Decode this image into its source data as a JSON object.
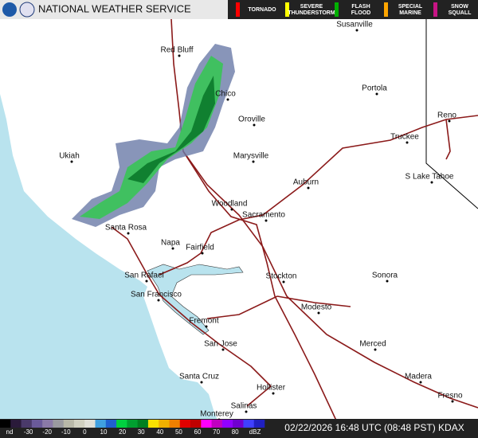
{
  "header": {
    "title": "NATIONAL WEATHER SERVICE",
    "warnings": [
      {
        "label": "TORNADO",
        "color": "#ff0000"
      },
      {
        "label": "SEVERE THUNDERSTORM",
        "color": "#ffff00"
      },
      {
        "label": "FLASH FLOOD",
        "color": "#00b000"
      },
      {
        "label": "SPECIAL MARINE",
        "color": "#ffa500"
      },
      {
        "label": "SNOW SQUALL",
        "color": "#c71585"
      }
    ]
  },
  "map": {
    "cities": [
      "Susanville",
      "Red Bluff",
      "Portola",
      "Chico",
      "Reno",
      "Oroville",
      "Truckee",
      "Ukiah",
      "Marysville",
      "S Lake Tahoe",
      "Auburn",
      "Woodland",
      "Sacramento",
      "Santa Rosa",
      "Napa",
      "Fairfield",
      "San Rafael",
      "Stockton",
      "Sonora",
      "San Francisco",
      "Modesto",
      "Fremont",
      "San Jose",
      "Merced",
      "Madera",
      "Santa Cruz",
      "Hollister",
      "Fresno",
      "Salinas",
      "Monterey"
    ]
  },
  "scale": {
    "labels": [
      "nd",
      "-30",
      "-20",
      "-10",
      "0",
      "10",
      "20",
      "30",
      "40",
      "50",
      "60",
      "70",
      "80"
    ],
    "unit": "dBZ",
    "colors": [
      "#000000",
      "#2a1a3a",
      "#4a3a6a",
      "#6a5a9a",
      "#8a7aa8",
      "#9a9aa0",
      "#b8b8a8",
      "#d0d0c0",
      "#e0e0d8",
      "#40a0e0",
      "#2060d0",
      "#00d040",
      "#00a030",
      "#008020",
      "#f8e000",
      "#f0b000",
      "#f08000",
      "#e00000",
      "#c00000",
      "#ff00ff",
      "#c000c0",
      "#9000ff",
      "#7000d0",
      "#4040ff",
      "#2020c0"
    ]
  },
  "footer": {
    "timestamp": "02/22/2026 16:48 UTC (08:48 PST) KDAX"
  }
}
